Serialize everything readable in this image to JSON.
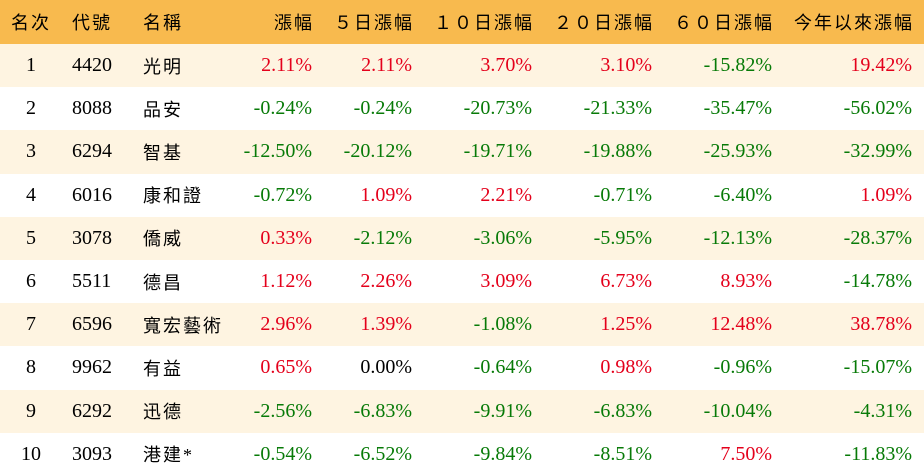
{
  "colors": {
    "header_bg": "#F8BA4E",
    "row_alt_bg": "#FEF4E1",
    "row_bg": "#FFFFFF",
    "positive": "#E4001B",
    "negative": "#077A07",
    "neutral": "#000000"
  },
  "chart_data": {
    "type": "table",
    "columns": [
      "名次",
      "代號",
      "名稱",
      "漲幅",
      "５日漲幅",
      "１０日漲幅",
      "２０日漲幅",
      "６０日漲幅",
      "今年以來漲幅"
    ],
    "rows": [
      {
        "rank": "1",
        "code": "4420",
        "name": "光明",
        "change": "2.11%",
        "change_5d": "2.11%",
        "change_10d": "3.70%",
        "change_20d": "3.10%",
        "change_60d": "-15.82%",
        "change_ytd": "19.42%"
      },
      {
        "rank": "2",
        "code": "8088",
        "name": "品安",
        "change": "-0.24%",
        "change_5d": "-0.24%",
        "change_10d": "-20.73%",
        "change_20d": "-21.33%",
        "change_60d": "-35.47%",
        "change_ytd": "-56.02%"
      },
      {
        "rank": "3",
        "code": "6294",
        "name": "智基",
        "change": "-12.50%",
        "change_5d": "-20.12%",
        "change_10d": "-19.71%",
        "change_20d": "-19.88%",
        "change_60d": "-25.93%",
        "change_ytd": "-32.99%"
      },
      {
        "rank": "4",
        "code": "6016",
        "name": "康和證",
        "change": "-0.72%",
        "change_5d": "1.09%",
        "change_10d": "2.21%",
        "change_20d": "-0.71%",
        "change_60d": "-6.40%",
        "change_ytd": "1.09%"
      },
      {
        "rank": "5",
        "code": "3078",
        "name": "僑威",
        "change": "0.33%",
        "change_5d": "-2.12%",
        "change_10d": "-3.06%",
        "change_20d": "-5.95%",
        "change_60d": "-12.13%",
        "change_ytd": "-28.37%"
      },
      {
        "rank": "6",
        "code": "5511",
        "name": "德昌",
        "change": "1.12%",
        "change_5d": "2.26%",
        "change_10d": "3.09%",
        "change_20d": "6.73%",
        "change_60d": "8.93%",
        "change_ytd": "-14.78%"
      },
      {
        "rank": "7",
        "code": "6596",
        "name": "寬宏藝術",
        "change": "2.96%",
        "change_5d": "1.39%",
        "change_10d": "-1.08%",
        "change_20d": "1.25%",
        "change_60d": "12.48%",
        "change_ytd": "38.78%"
      },
      {
        "rank": "8",
        "code": "9962",
        "name": "有益",
        "change": "0.65%",
        "change_5d": "0.00%",
        "change_10d": "-0.64%",
        "change_20d": "0.98%",
        "change_60d": "-0.96%",
        "change_ytd": "-15.07%"
      },
      {
        "rank": "9",
        "code": "6292",
        "name": "迅德",
        "change": "-2.56%",
        "change_5d": "-6.83%",
        "change_10d": "-9.91%",
        "change_20d": "-6.83%",
        "change_60d": "-10.04%",
        "change_ytd": "-4.31%"
      },
      {
        "rank": "10",
        "code": "3093",
        "name": "港建*",
        "change": "-0.54%",
        "change_5d": "-6.52%",
        "change_10d": "-9.84%",
        "change_20d": "-8.51%",
        "change_60d": "7.50%",
        "change_ytd": "-11.83%"
      }
    ]
  }
}
